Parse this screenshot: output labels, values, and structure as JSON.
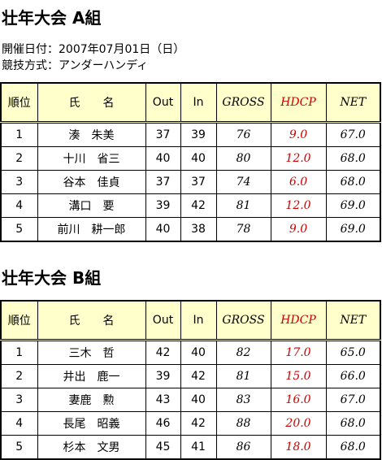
{
  "info": [
    "開催日付：2007年07月01日（日）",
    "競技方式：アンダーハンディ"
  ],
  "groups": [
    {
      "title": "壮年大会 A組",
      "columns": [
        "順位",
        "氏　　名",
        "Out",
        "In",
        "GROSS",
        "HDCP",
        "NET"
      ],
      "rows": [
        [
          "1",
          "湊　朱美",
          "37",
          "39",
          "76",
          "9.0",
          "67.0"
        ],
        [
          "2",
          "十川　省三",
          "40",
          "40",
          "80",
          "12.0",
          "68.0"
        ],
        [
          "3",
          "谷本　佳貞",
          "37",
          "37",
          "74",
          "6.0",
          "68.0"
        ],
        [
          "4",
          "溝口　要",
          "39",
          "42",
          "81",
          "12.0",
          "69.0"
        ],
        [
          "5",
          "前川　耕一郎",
          "40",
          "38",
          "78",
          "9.0",
          "69.0"
        ]
      ]
    },
    {
      "title": "壮年大会 B組",
      "columns": [
        "順位",
        "氏　　名",
        "Out",
        "In",
        "GROSS",
        "HDCP",
        "NET"
      ],
      "rows": [
        [
          "1",
          "三木　哲",
          "42",
          "40",
          "82",
          "17.0",
          "65.0"
        ],
        [
          "2",
          "井出　鹿一",
          "39",
          "42",
          "81",
          "15.0",
          "66.0"
        ],
        [
          "3",
          "妻鹿　勲",
          "43",
          "40",
          "83",
          "16.0",
          "67.0"
        ],
        [
          "4",
          "長尾　昭義",
          "46",
          "42",
          "88",
          "20.0",
          "68.0"
        ],
        [
          "5",
          "杉本　文男",
          "45",
          "41",
          "86",
          "18.0",
          "68.0"
        ]
      ]
    }
  ]
}
